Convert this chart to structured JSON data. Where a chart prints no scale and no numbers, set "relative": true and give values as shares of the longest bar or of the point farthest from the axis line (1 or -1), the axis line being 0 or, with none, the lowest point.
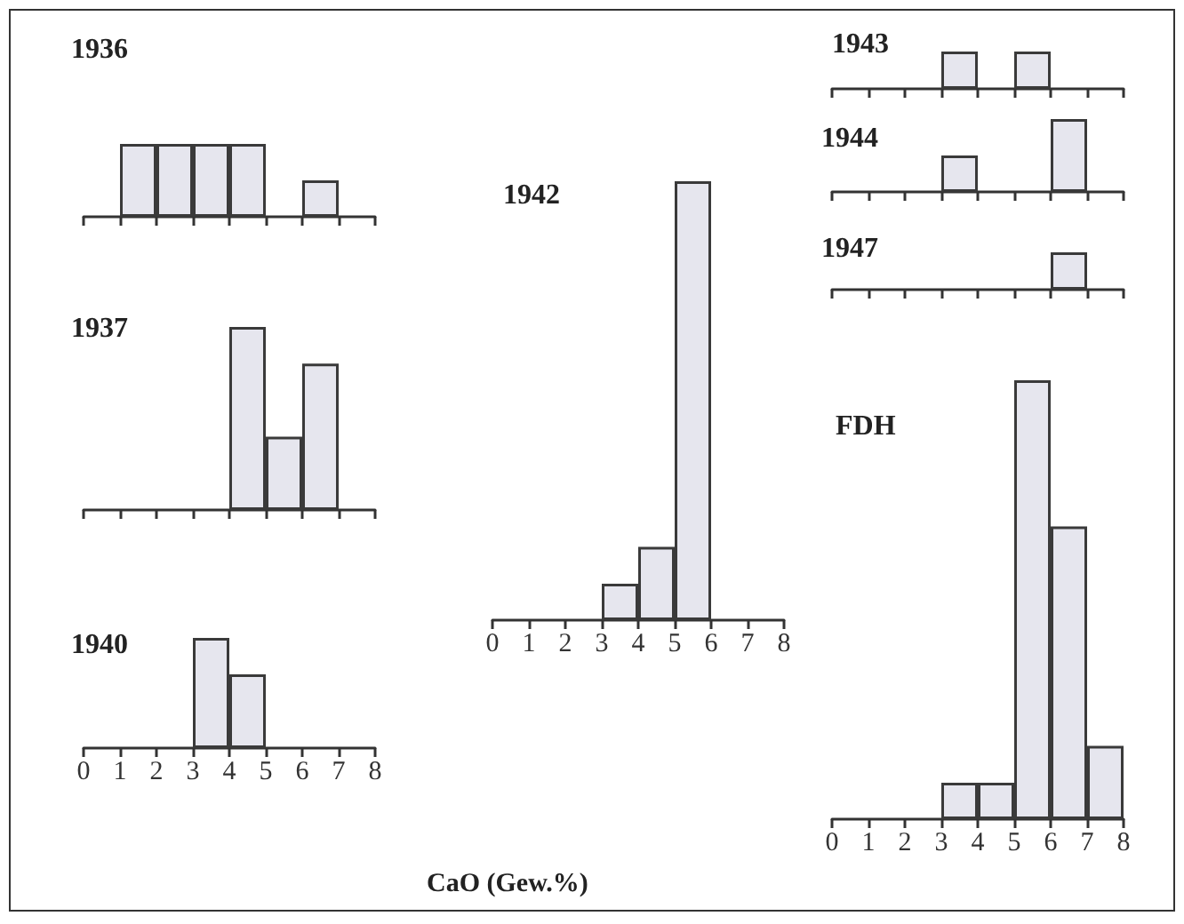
{
  "chart_data": [
    {
      "type": "bar",
      "title": "1936",
      "relative": true,
      "color": "#e6e6ee",
      "x": [
        0.5,
        1.5,
        2.5,
        3.5,
        4.5,
        5.5,
        6.5,
        7.5
      ],
      "values": [
        0,
        1,
        1,
        1,
        1,
        0,
        0.5,
        0
      ],
      "xlim": [
        0,
        8
      ],
      "xticks": [
        {
          "value": 0,
          "label": null
        },
        {
          "value": 1,
          "label": null
        },
        {
          "value": 2,
          "label": null
        },
        {
          "value": 3,
          "label": null
        },
        {
          "value": 4,
          "label": null
        },
        {
          "value": 5,
          "label": null
        },
        {
          "value": 6,
          "label": null
        },
        {
          "value": 7,
          "label": null
        },
        {
          "value": 8,
          "label": null
        }
      ],
      "tick_labels": false
    },
    {
      "type": "bar",
      "title": "1937",
      "relative": true,
      "color": "#e6e6ee",
      "x": [
        0.5,
        1.5,
        2.5,
        3.5,
        4.5,
        5.5,
        6.5,
        7.5
      ],
      "values": [
        0,
        0,
        0,
        0,
        1,
        0.4,
        0.8,
        0
      ],
      "xlim": [
        0,
        8
      ],
      "xticks": [
        {
          "value": 0,
          "label": null
        },
        {
          "value": 1,
          "label": null
        },
        {
          "value": 2,
          "label": null
        },
        {
          "value": 3,
          "label": null
        },
        {
          "value": 4,
          "label": null
        },
        {
          "value": 5,
          "label": null
        },
        {
          "value": 6,
          "label": null
        },
        {
          "value": 7,
          "label": null
        },
        {
          "value": 8,
          "label": null
        }
      ],
      "tick_labels": false
    },
    {
      "type": "bar",
      "title": "1940",
      "xlabel": "CaO (Gew.%)",
      "relative": true,
      "color": "#e6e6ee",
      "x": [
        0.5,
        1.5,
        2.5,
        3.5,
        4.5,
        5.5,
        6.5,
        7.5
      ],
      "values": [
        0,
        0,
        0,
        1,
        0.67,
        0,
        0,
        0
      ],
      "xlim": [
        0,
        8
      ],
      "xticks": [
        0,
        1,
        2,
        3,
        4,
        5,
        6,
        7,
        8
      ],
      "tick_labels": "x"
    },
    {
      "type": "bar",
      "title": "1942",
      "relative": true,
      "color": "#e6e6ee",
      "x": [
        0.5,
        1.5,
        2.5,
        3.5,
        4.5,
        5.5,
        6.5,
        7.5
      ],
      "values": [
        0,
        0,
        0,
        0.083,
        0.167,
        1,
        0,
        0
      ],
      "xlim": [
        0,
        8
      ],
      "xticks": [
        0,
        1,
        2,
        3,
        4,
        5,
        6,
        7,
        8
      ],
      "tick_labels": "x"
    },
    {
      "type": "bar",
      "title": "1943",
      "relative": true,
      "color": "#e6e6ee",
      "x": [
        0.5,
        1.5,
        2.5,
        3.5,
        4.5,
        5.5,
        6.5,
        7.5
      ],
      "values": [
        0,
        0,
        0,
        1,
        0,
        1,
        0,
        0
      ],
      "xlim": [
        0,
        8
      ],
      "xticks": [
        {
          "value": 0,
          "label": null
        },
        {
          "value": 1,
          "label": null
        },
        {
          "value": 2,
          "label": null
        },
        {
          "value": 3,
          "label": null
        },
        {
          "value": 4,
          "label": null
        },
        {
          "value": 5,
          "label": null
        },
        {
          "value": 6,
          "label": null
        },
        {
          "value": 7,
          "label": null
        },
        {
          "value": 8,
          "label": null
        }
      ],
      "tick_labels": false
    },
    {
      "type": "bar",
      "title": "1944",
      "relative": true,
      "color": "#e6e6ee",
      "x": [
        0.5,
        1.5,
        2.5,
        3.5,
        4.5,
        5.5,
        6.5,
        7.5
      ],
      "values": [
        0,
        0,
        0,
        0.5,
        0,
        0,
        1,
        0
      ],
      "xlim": [
        0,
        8
      ],
      "xticks": [
        {
          "value": 0,
          "label": null
        },
        {
          "value": 1,
          "label": null
        },
        {
          "value": 2,
          "label": null
        },
        {
          "value": 3,
          "label": null
        },
        {
          "value": 4,
          "label": null
        },
        {
          "value": 5,
          "label": null
        },
        {
          "value": 6,
          "label": null
        },
        {
          "value": 7,
          "label": null
        },
        {
          "value": 8,
          "label": null
        }
      ],
      "tick_labels": false
    },
    {
      "type": "bar",
      "title": "1947",
      "relative": true,
      "color": "#e6e6ee",
      "x": [
        0.5,
        1.5,
        2.5,
        3.5,
        4.5,
        5.5,
        6.5,
        7.5
      ],
      "values": [
        0,
        0,
        0,
        0,
        0,
        0,
        1,
        0
      ],
      "xlim": [
        0,
        8
      ],
      "xticks": [
        {
          "value": 0,
          "label": null
        },
        {
          "value": 1,
          "label": null
        },
        {
          "value": 2,
          "label": null
        },
        {
          "value": 3,
          "label": null
        },
        {
          "value": 4,
          "label": null
        },
        {
          "value": 5,
          "label": null
        },
        {
          "value": 6,
          "label": null
        },
        {
          "value": 7,
          "label": null
        },
        {
          "value": 8,
          "label": null
        }
      ],
      "tick_labels": false
    },
    {
      "type": "bar",
      "title": "FDH",
      "relative": true,
      "color": "#e6e6ee",
      "x": [
        0.5,
        1.5,
        2.5,
        3.5,
        4.5,
        5.5,
        6.5,
        7.5
      ],
      "values": [
        0,
        0,
        0,
        0.083,
        0.083,
        1,
        0.667,
        0.167
      ],
      "xlim": [
        0,
        8
      ],
      "xticks": [
        0,
        1,
        2,
        3,
        4,
        5,
        6,
        7,
        8
      ],
      "tick_labels": "x"
    }
  ]
}
